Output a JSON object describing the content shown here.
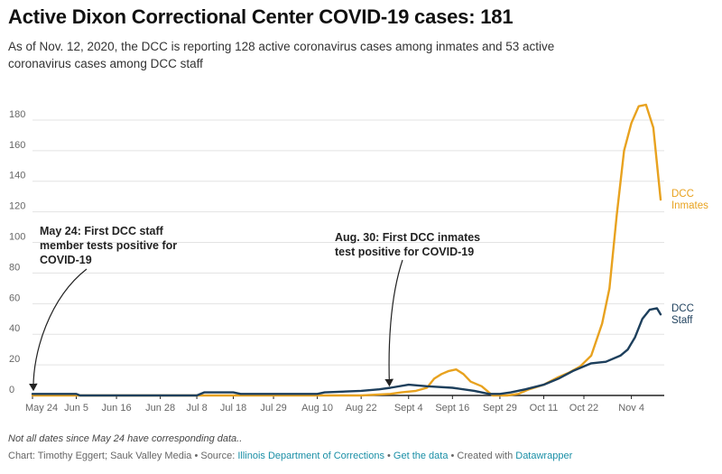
{
  "title": "Active Dixon Correctional Center COVID-19 cases: 181",
  "subtitle": "As of Nov. 12, 2020, the DCC is reporting 128 active coronavirus cases among inmates and 53 active coronavirus cases among DCC staff",
  "note": "Not all dates since May 24 have corresponding data..",
  "credits": {
    "prefix": "Chart: Timothy Eggert; Sauk Valley Media • Source: ",
    "source": "Illinois Department of Corrections",
    "sep1": " • ",
    "get_data": "Get the data",
    "suffix": " • Created with ",
    "tool": "Datawrapper"
  },
  "colors": {
    "inmates": "#e8a21f",
    "staff": "#1d3f5c",
    "axis": "#222222",
    "grid": "#e3e3e3",
    "link": "#1a8fa6"
  },
  "chart_data": {
    "type": "line",
    "x_tick_labels": [
      "May 24",
      "Jun 5",
      "Jun 16",
      "Jun 28",
      "Jul 8",
      "Jul 18",
      "Jul 29",
      "Aug 10",
      "Aug 22",
      "Sept 4",
      "Sept 16",
      "Sept 29",
      "Oct 11",
      "Oct 22",
      "Nov 4"
    ],
    "y_ticks": [
      0,
      20,
      40,
      60,
      80,
      100,
      120,
      140,
      160,
      180
    ],
    "ylim": [
      0,
      190
    ],
    "series": [
      {
        "name": "DCC Inmates",
        "label_lines": [
          "DCC",
          "Inmates"
        ],
        "points": [
          [
            "May 24",
            0
          ],
          [
            "Jun 5",
            0
          ],
          [
            "Jun 16",
            0
          ],
          [
            "Jun 28",
            0
          ],
          [
            "Jul 8",
            0
          ],
          [
            "Jul 18",
            0
          ],
          [
            "Jul 29",
            0
          ],
          [
            "Aug 10",
            0
          ],
          [
            "Aug 22",
            0
          ],
          [
            "Aug 30",
            1
          ],
          [
            "Sept 2",
            2
          ],
          [
            "Sept 6",
            3
          ],
          [
            "Sept 9",
            5
          ],
          [
            "Sept 11",
            11
          ],
          [
            "Sept 13",
            14
          ],
          [
            "Sept 15",
            16
          ],
          [
            "Sept 17",
            17
          ],
          [
            "Sept 19",
            14
          ],
          [
            "Sept 21",
            9
          ],
          [
            "Sept 24",
            6
          ],
          [
            "Sept 27",
            0
          ],
          [
            "Oct 1",
            0
          ],
          [
            "Oct 4",
            1
          ],
          [
            "Oct 7",
            4
          ],
          [
            "Oct 11",
            7
          ],
          [
            "Oct 15",
            12
          ],
          [
            "Oct 18",
            15
          ],
          [
            "Oct 21",
            19
          ],
          [
            "Oct 24",
            26
          ],
          [
            "Oct 27",
            47
          ],
          [
            "Oct 29",
            70
          ],
          [
            "Oct 31",
            118
          ],
          [
            "Nov 2",
            160
          ],
          [
            "Nov 4",
            178
          ],
          [
            "Nov 6",
            189
          ],
          [
            "Nov 8",
            190
          ],
          [
            "Nov 10",
            175
          ],
          [
            "Nov 12",
            128
          ]
        ]
      },
      {
        "name": "DCC Staff",
        "label_lines": [
          "DCC",
          "Staff"
        ],
        "points": [
          [
            "May 24",
            1
          ],
          [
            "Jun 5",
            1
          ],
          [
            "Jun 6",
            0
          ],
          [
            "Jun 28",
            0
          ],
          [
            "Jul 8",
            0
          ],
          [
            "Jul 10",
            2
          ],
          [
            "Jul 18",
            2
          ],
          [
            "Jul 20",
            1
          ],
          [
            "Jul 29",
            1
          ],
          [
            "Aug 10",
            1
          ],
          [
            "Aug 12",
            2
          ],
          [
            "Aug 22",
            3
          ],
          [
            "Aug 27",
            4
          ],
          [
            "Aug 30",
            5
          ],
          [
            "Sept 4",
            7
          ],
          [
            "Sept 9",
            6
          ],
          [
            "Sept 16",
            5
          ],
          [
            "Sept 22",
            3
          ],
          [
            "Sept 26",
            1
          ],
          [
            "Sept 29",
            1
          ],
          [
            "Oct 2",
            2
          ],
          [
            "Oct 6",
            4
          ],
          [
            "Oct 11",
            7
          ],
          [
            "Oct 15",
            11
          ],
          [
            "Oct 19",
            16
          ],
          [
            "Oct 24",
            21
          ],
          [
            "Oct 28",
            22
          ],
          [
            "Nov 1",
            26
          ],
          [
            "Nov 3",
            30
          ],
          [
            "Nov 5",
            38
          ],
          [
            "Nov 7",
            50
          ],
          [
            "Nov 9",
            56
          ],
          [
            "Nov 11",
            57
          ],
          [
            "Nov 12",
            53
          ]
        ]
      }
    ],
    "annotations": [
      {
        "lines": [
          "May 24: First DCC staff",
          "member tests positive for",
          "COVID-19"
        ]
      },
      {
        "lines": [
          "Aug. 30: First DCC inmates",
          "test positive for COVID-19"
        ]
      }
    ]
  }
}
